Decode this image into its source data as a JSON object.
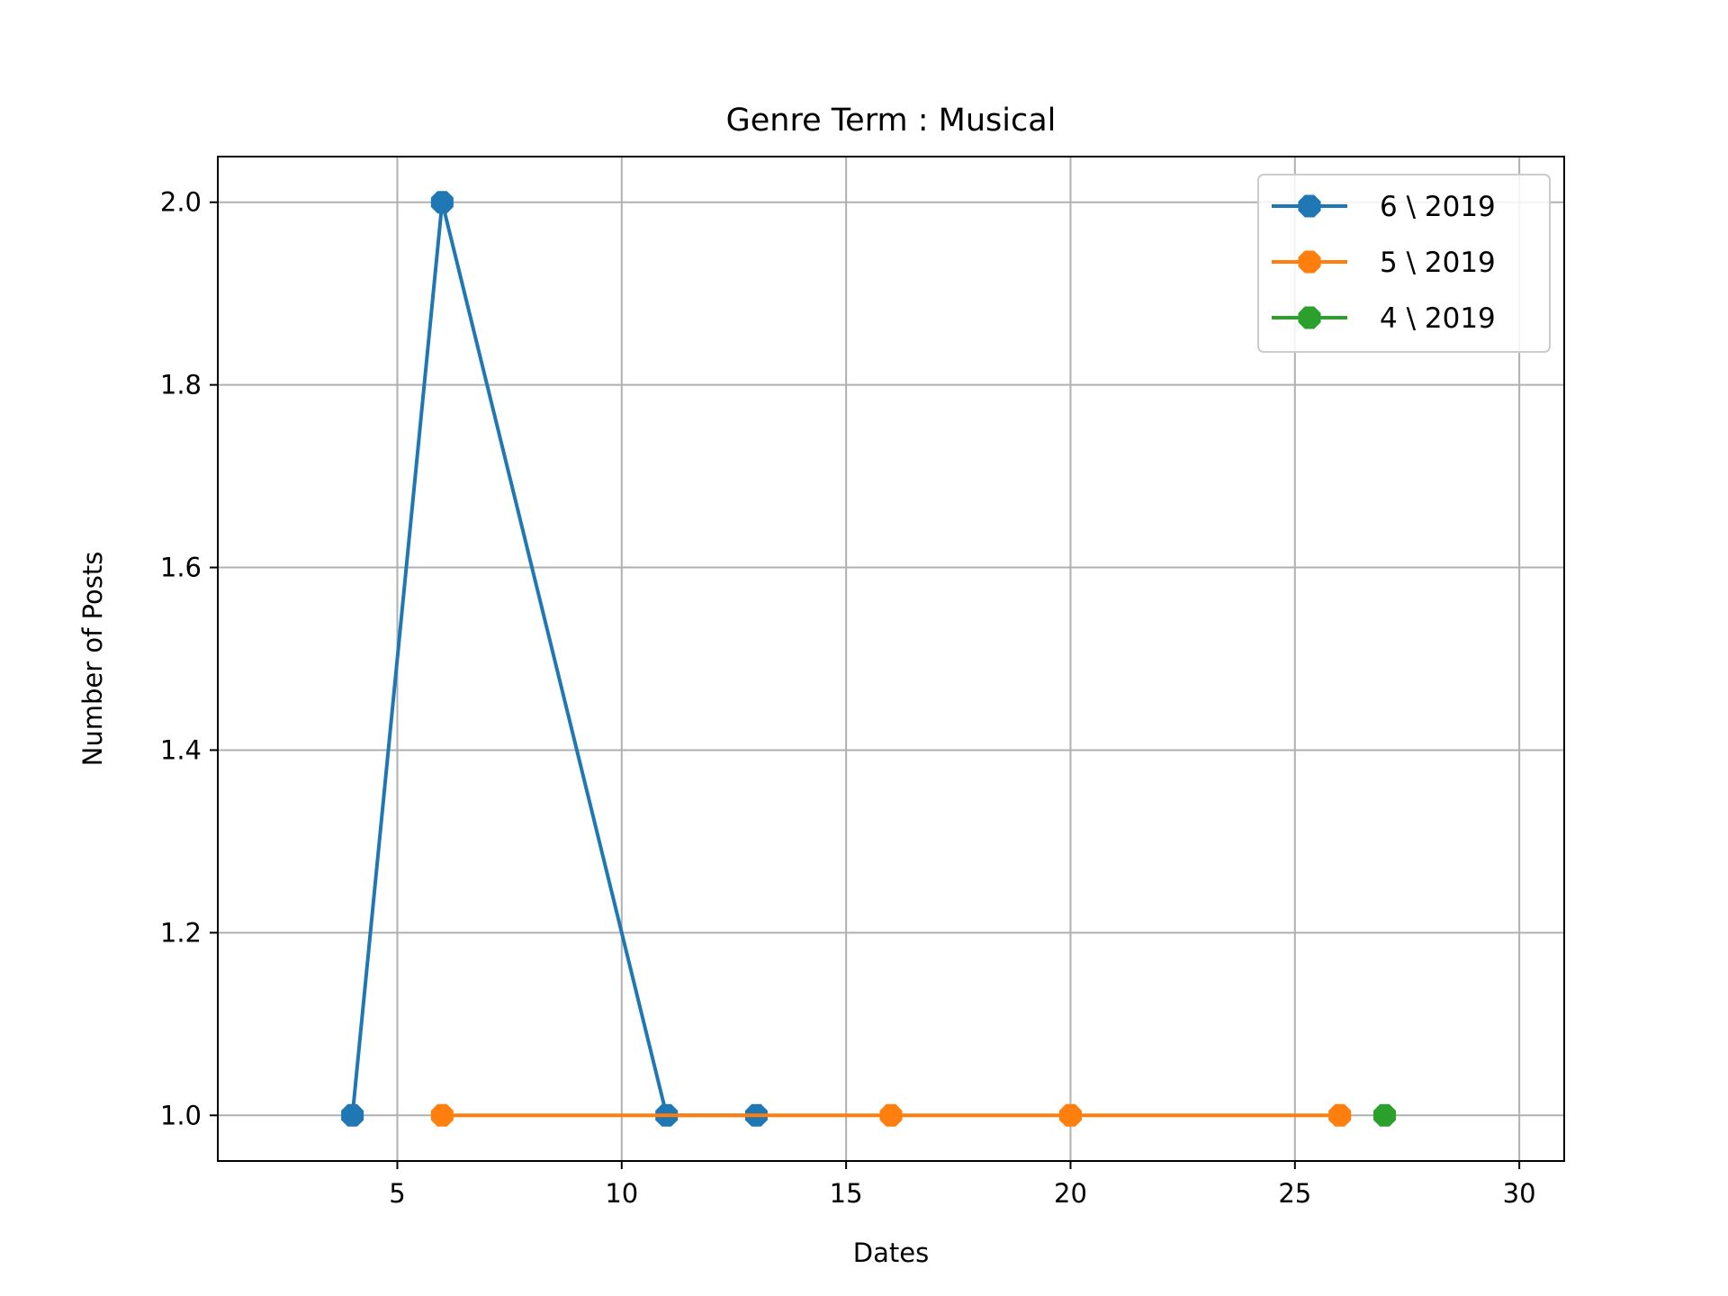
{
  "chart_data": {
    "type": "line",
    "title": "Genre Term : Musical",
    "xlabel": "Dates",
    "ylabel": "Number of Posts",
    "xlim": [
      1,
      31
    ],
    "ylim": [
      0.95,
      2.05
    ],
    "xticks": [
      5,
      10,
      15,
      20,
      25,
      30
    ],
    "xtick_labels": [
      "5",
      "10",
      "15",
      "20",
      "25",
      "30"
    ],
    "yticks": [
      1.0,
      1.2,
      1.4,
      1.6,
      1.8,
      2.0
    ],
    "ytick_labels": [
      "1.0",
      "1.2",
      "1.4",
      "1.6",
      "1.8",
      "2.0"
    ],
    "grid": true,
    "legend_position": "top-right",
    "series": [
      {
        "name": "6 \\ 2019",
        "color": "#1f77b4",
        "marker": "octagon",
        "x": [
          4,
          6,
          11,
          13
        ],
        "y": [
          1,
          2,
          1,
          1
        ]
      },
      {
        "name": "5 \\ 2019",
        "color": "#ff7f0e",
        "marker": "octagon",
        "x": [
          6,
          16,
          20,
          26
        ],
        "y": [
          1,
          1,
          1,
          1
        ]
      },
      {
        "name": "4 \\ 2019",
        "color": "#2ca02c",
        "marker": "octagon",
        "x": [
          27
        ],
        "y": [
          1
        ]
      }
    ]
  }
}
